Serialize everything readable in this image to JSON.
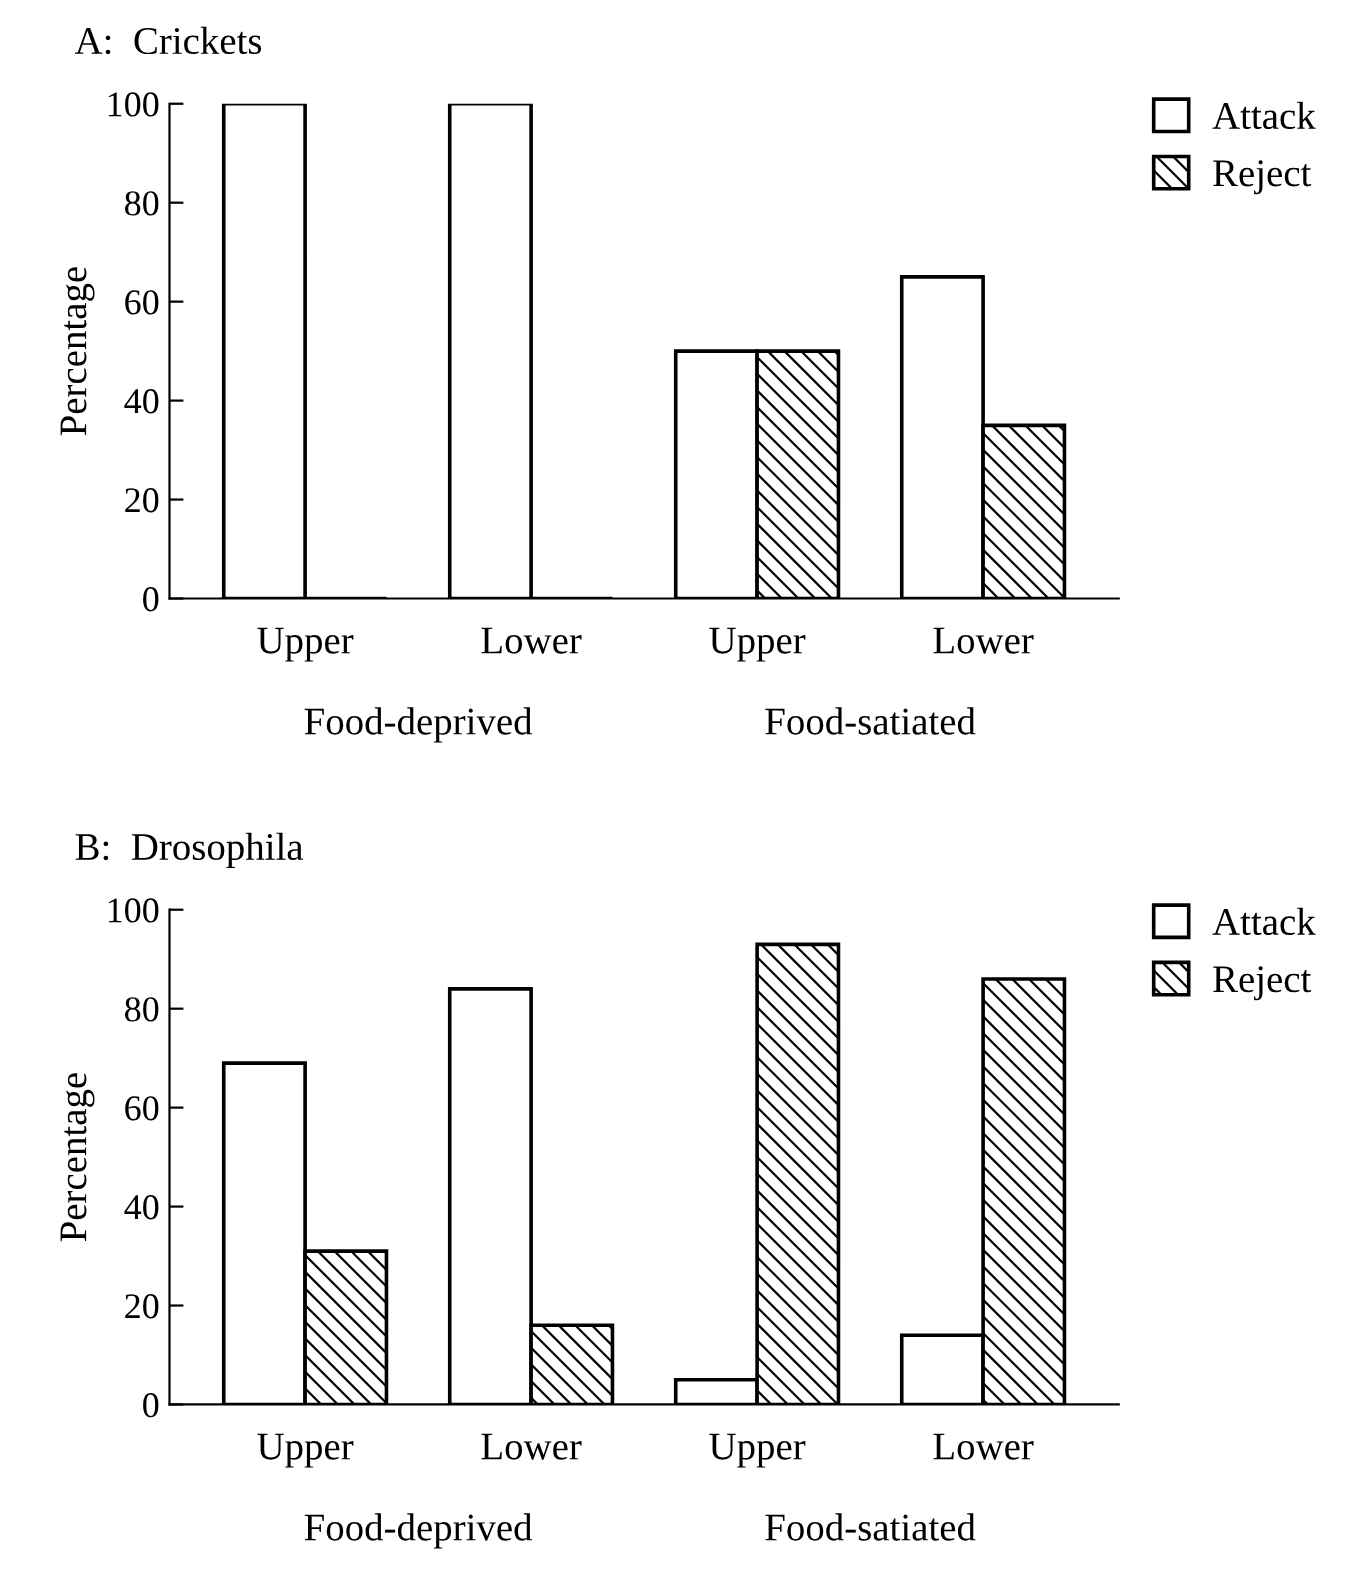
{
  "chart_data": [
    {
      "type": "bar",
      "title": "A:  Crickets",
      "ylabel": "Percentage",
      "categories": [
        "Upper",
        "Lower",
        "Upper",
        "Lower"
      ],
      "annotations": [
        "Food-deprived",
        "Food-satiated"
      ],
      "ylim": [
        0,
        100
      ],
      "yticks": [
        0,
        20,
        40,
        60,
        80,
        100
      ],
      "legend": "top right",
      "series": [
        {
          "name": "Attack",
          "color": "#ffffff",
          "values": [
            100,
            100,
            50,
            65
          ]
        },
        {
          "name": "Reject",
          "color": "#000000",
          "values": [
            0,
            0,
            50,
            35
          ]
        }
      ]
    },
    {
      "type": "bar",
      "title": "B:  Drosophila",
      "ylabel": "Percentage",
      "categories": [
        "Upper",
        "Lower",
        "Upper",
        "Lower"
      ],
      "annotations": [
        "Food-deprived",
        "Food-satiated"
      ],
      "ylim": [
        0,
        100
      ],
      "yticks": [
        0,
        20,
        40,
        60,
        80,
        100
      ],
      "legend": "top right",
      "series": [
        {
          "name": "Attack",
          "color": "#ffffff",
          "values": [
            69,
            84,
            5,
            14
          ]
        },
        {
          "name": "Reject",
          "color": "#000000",
          "values": [
            31,
            16,
            93,
            86
          ]
        }
      ]
    }
  ]
}
